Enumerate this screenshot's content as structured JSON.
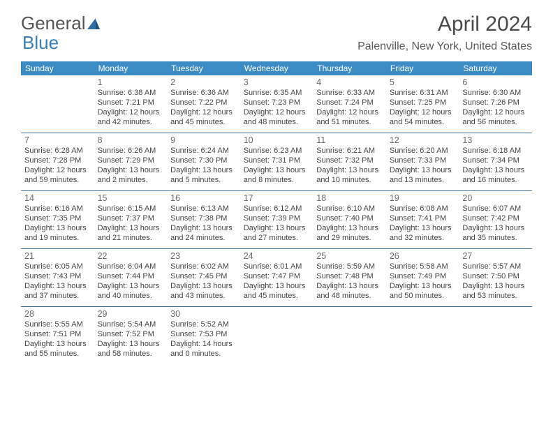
{
  "logo": {
    "part1": "General",
    "part2": "Blue"
  },
  "title": "April 2024",
  "location": "Palenville, New York, United States",
  "colors": {
    "header_bg": "#3b8bc4",
    "header_text": "#ffffff",
    "divider": "#3b6a90",
    "daynum": "#6a6a6a",
    "bodytext": "#444444",
    "logo_gray": "#555555",
    "logo_blue": "#3b7fb8"
  },
  "days_of_week": [
    "Sunday",
    "Monday",
    "Tuesday",
    "Wednesday",
    "Thursday",
    "Friday",
    "Saturday"
  ],
  "weeks": [
    [
      {
        "n": "",
        "sunrise": "",
        "sunset": "",
        "daylight": ""
      },
      {
        "n": "1",
        "sunrise": "Sunrise: 6:38 AM",
        "sunset": "Sunset: 7:21 PM",
        "daylight": "Daylight: 12 hours and 42 minutes."
      },
      {
        "n": "2",
        "sunrise": "Sunrise: 6:36 AM",
        "sunset": "Sunset: 7:22 PM",
        "daylight": "Daylight: 12 hours and 45 minutes."
      },
      {
        "n": "3",
        "sunrise": "Sunrise: 6:35 AM",
        "sunset": "Sunset: 7:23 PM",
        "daylight": "Daylight: 12 hours and 48 minutes."
      },
      {
        "n": "4",
        "sunrise": "Sunrise: 6:33 AM",
        "sunset": "Sunset: 7:24 PM",
        "daylight": "Daylight: 12 hours and 51 minutes."
      },
      {
        "n": "5",
        "sunrise": "Sunrise: 6:31 AM",
        "sunset": "Sunset: 7:25 PM",
        "daylight": "Daylight: 12 hours and 54 minutes."
      },
      {
        "n": "6",
        "sunrise": "Sunrise: 6:30 AM",
        "sunset": "Sunset: 7:26 PM",
        "daylight": "Daylight: 12 hours and 56 minutes."
      }
    ],
    [
      {
        "n": "7",
        "sunrise": "Sunrise: 6:28 AM",
        "sunset": "Sunset: 7:28 PM",
        "daylight": "Daylight: 12 hours and 59 minutes."
      },
      {
        "n": "8",
        "sunrise": "Sunrise: 6:26 AM",
        "sunset": "Sunset: 7:29 PM",
        "daylight": "Daylight: 13 hours and 2 minutes."
      },
      {
        "n": "9",
        "sunrise": "Sunrise: 6:24 AM",
        "sunset": "Sunset: 7:30 PM",
        "daylight": "Daylight: 13 hours and 5 minutes."
      },
      {
        "n": "10",
        "sunrise": "Sunrise: 6:23 AM",
        "sunset": "Sunset: 7:31 PM",
        "daylight": "Daylight: 13 hours and 8 minutes."
      },
      {
        "n": "11",
        "sunrise": "Sunrise: 6:21 AM",
        "sunset": "Sunset: 7:32 PM",
        "daylight": "Daylight: 13 hours and 10 minutes."
      },
      {
        "n": "12",
        "sunrise": "Sunrise: 6:20 AM",
        "sunset": "Sunset: 7:33 PM",
        "daylight": "Daylight: 13 hours and 13 minutes."
      },
      {
        "n": "13",
        "sunrise": "Sunrise: 6:18 AM",
        "sunset": "Sunset: 7:34 PM",
        "daylight": "Daylight: 13 hours and 16 minutes."
      }
    ],
    [
      {
        "n": "14",
        "sunrise": "Sunrise: 6:16 AM",
        "sunset": "Sunset: 7:35 PM",
        "daylight": "Daylight: 13 hours and 19 minutes."
      },
      {
        "n": "15",
        "sunrise": "Sunrise: 6:15 AM",
        "sunset": "Sunset: 7:37 PM",
        "daylight": "Daylight: 13 hours and 21 minutes."
      },
      {
        "n": "16",
        "sunrise": "Sunrise: 6:13 AM",
        "sunset": "Sunset: 7:38 PM",
        "daylight": "Daylight: 13 hours and 24 minutes."
      },
      {
        "n": "17",
        "sunrise": "Sunrise: 6:12 AM",
        "sunset": "Sunset: 7:39 PM",
        "daylight": "Daylight: 13 hours and 27 minutes."
      },
      {
        "n": "18",
        "sunrise": "Sunrise: 6:10 AM",
        "sunset": "Sunset: 7:40 PM",
        "daylight": "Daylight: 13 hours and 29 minutes."
      },
      {
        "n": "19",
        "sunrise": "Sunrise: 6:08 AM",
        "sunset": "Sunset: 7:41 PM",
        "daylight": "Daylight: 13 hours and 32 minutes."
      },
      {
        "n": "20",
        "sunrise": "Sunrise: 6:07 AM",
        "sunset": "Sunset: 7:42 PM",
        "daylight": "Daylight: 13 hours and 35 minutes."
      }
    ],
    [
      {
        "n": "21",
        "sunrise": "Sunrise: 6:05 AM",
        "sunset": "Sunset: 7:43 PM",
        "daylight": "Daylight: 13 hours and 37 minutes."
      },
      {
        "n": "22",
        "sunrise": "Sunrise: 6:04 AM",
        "sunset": "Sunset: 7:44 PM",
        "daylight": "Daylight: 13 hours and 40 minutes."
      },
      {
        "n": "23",
        "sunrise": "Sunrise: 6:02 AM",
        "sunset": "Sunset: 7:45 PM",
        "daylight": "Daylight: 13 hours and 43 minutes."
      },
      {
        "n": "24",
        "sunrise": "Sunrise: 6:01 AM",
        "sunset": "Sunset: 7:47 PM",
        "daylight": "Daylight: 13 hours and 45 minutes."
      },
      {
        "n": "25",
        "sunrise": "Sunrise: 5:59 AM",
        "sunset": "Sunset: 7:48 PM",
        "daylight": "Daylight: 13 hours and 48 minutes."
      },
      {
        "n": "26",
        "sunrise": "Sunrise: 5:58 AM",
        "sunset": "Sunset: 7:49 PM",
        "daylight": "Daylight: 13 hours and 50 minutes."
      },
      {
        "n": "27",
        "sunrise": "Sunrise: 5:57 AM",
        "sunset": "Sunset: 7:50 PM",
        "daylight": "Daylight: 13 hours and 53 minutes."
      }
    ],
    [
      {
        "n": "28",
        "sunrise": "Sunrise: 5:55 AM",
        "sunset": "Sunset: 7:51 PM",
        "daylight": "Daylight: 13 hours and 55 minutes."
      },
      {
        "n": "29",
        "sunrise": "Sunrise: 5:54 AM",
        "sunset": "Sunset: 7:52 PM",
        "daylight": "Daylight: 13 hours and 58 minutes."
      },
      {
        "n": "30",
        "sunrise": "Sunrise: 5:52 AM",
        "sunset": "Sunset: 7:53 PM",
        "daylight": "Daylight: 14 hours and 0 minutes."
      },
      {
        "n": "",
        "sunrise": "",
        "sunset": "",
        "daylight": ""
      },
      {
        "n": "",
        "sunrise": "",
        "sunset": "",
        "daylight": ""
      },
      {
        "n": "",
        "sunrise": "",
        "sunset": "",
        "daylight": ""
      },
      {
        "n": "",
        "sunrise": "",
        "sunset": "",
        "daylight": ""
      }
    ]
  ]
}
